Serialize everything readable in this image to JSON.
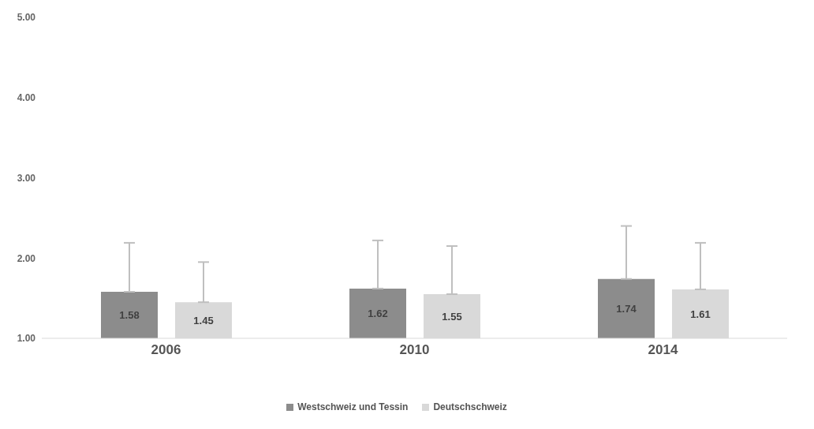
{
  "chart_data": {
    "type": "bar",
    "categories": [
      "2006",
      "2010",
      "2014"
    ],
    "series": [
      {
        "name": "Westschweiz und Tessin",
        "color": "#8c8c8c",
        "values": [
          1.58,
          1.62,
          1.74
        ],
        "errors": [
          [
            1.58,
            2.19
          ],
          [
            1.62,
            2.22
          ],
          [
            1.74,
            2.4
          ]
        ]
      },
      {
        "name": "Deutschschweiz",
        "color": "#d9d9d9",
        "values": [
          1.45,
          1.55,
          1.61
        ],
        "errors": [
          [
            1.45,
            1.95
          ],
          [
            1.55,
            2.15
          ],
          [
            1.61,
            2.19
          ]
        ]
      }
    ],
    "ylim": [
      1,
      5
    ],
    "yticks": [
      {
        "value": 1,
        "label": "1.00"
      },
      {
        "value": 2,
        "label": "2.00"
      },
      {
        "value": 3,
        "label": "3.00"
      },
      {
        "value": 4,
        "label": "4.00"
      },
      {
        "value": 5,
        "label": "5.00"
      }
    ],
    "data_labels": true,
    "legend": "bottom",
    "grid": false
  }
}
